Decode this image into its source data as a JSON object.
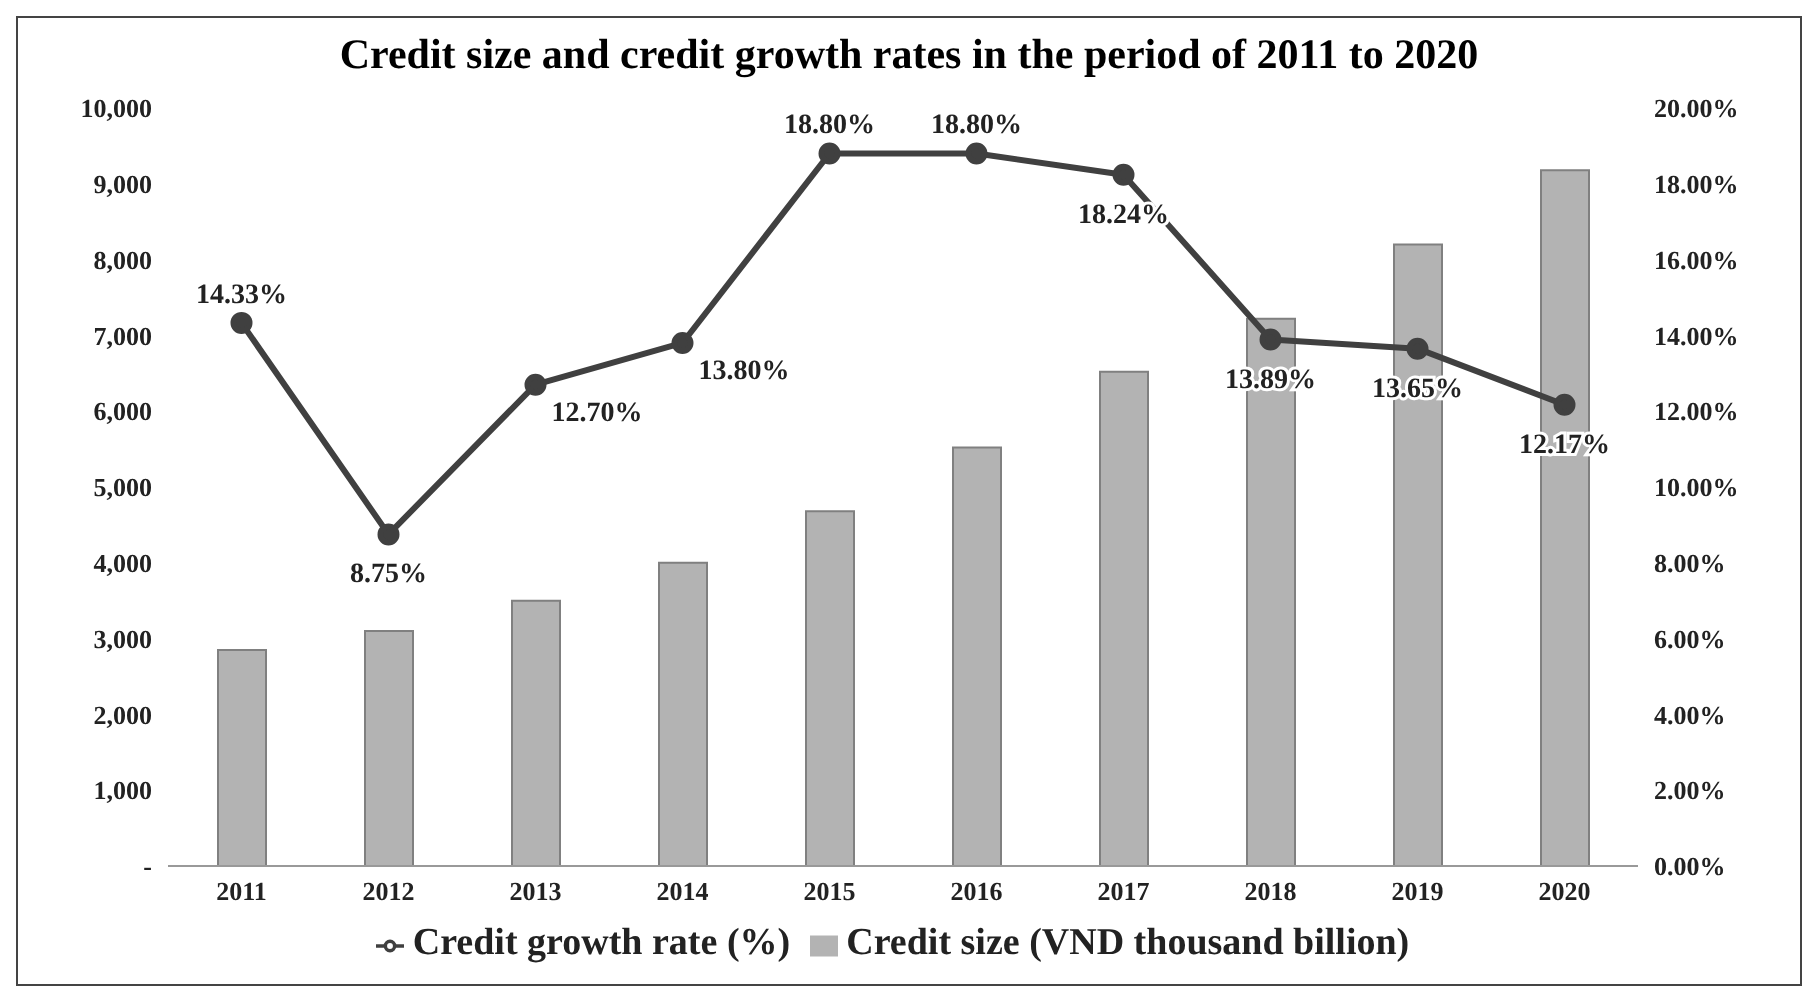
{
  "chart_data": {
    "type": "bar",
    "title": "Credit size and credit growth rates in the period of 2011 to 2020",
    "categories": [
      "2011",
      "2012",
      "2013",
      "2014",
      "2015",
      "2016",
      "2017",
      "2018",
      "2019",
      "2020"
    ],
    "series": [
      {
        "name": "Credit size (VND thousand billion)",
        "color": "#b3b3b3",
        "values": [
          2850,
          3100,
          3500,
          4000,
          4680,
          5520,
          6520,
          7220,
          8200,
          9180
        ]
      },
      {
        "name": "Credit growth rate (%)",
        "type": "line",
        "axis": "y2",
        "color": "#404040",
        "marker": "circle",
        "values": [
          14.33,
          8.75,
          12.7,
          13.8,
          18.8,
          18.8,
          18.24,
          13.89,
          13.65,
          12.17
        ],
        "value_labels": [
          "14.33%",
          "8.75%",
          "12.70%",
          "13.80%",
          "18.80%",
          "18.80%",
          "18.24%",
          "13.89%",
          "13.65%",
          "12.17%"
        ]
      }
    ],
    "ylim": [
      0,
      10000
    ],
    "yticks": [
      {
        "value": 0,
        "label": "-"
      },
      {
        "value": 1000,
        "label": "1,000"
      },
      {
        "value": 2000,
        "label": "2,000"
      },
      {
        "value": 3000,
        "label": "3,000"
      },
      {
        "value": 4000,
        "label": "4,000"
      },
      {
        "value": 5000,
        "label": "5,000"
      },
      {
        "value": 6000,
        "label": "6,000"
      },
      {
        "value": 7000,
        "label": "7,000"
      },
      {
        "value": 8000,
        "label": "8,000"
      },
      {
        "value": 9000,
        "label": "9,000"
      },
      {
        "value": 10000,
        "label": "10,000"
      }
    ],
    "y2lim": [
      0,
      20
    ],
    "y2ticks": [
      {
        "value": 0,
        "label": "0.00%"
      },
      {
        "value": 2,
        "label": "2.00%"
      },
      {
        "value": 4,
        "label": "4.00%"
      },
      {
        "value": 6,
        "label": "6.00%"
      },
      {
        "value": 8,
        "label": "8.00%"
      },
      {
        "value": 10,
        "label": "10.00%"
      },
      {
        "value": 12,
        "label": "12.00%"
      },
      {
        "value": 14,
        "label": "14.00%"
      },
      {
        "value": 16,
        "label": "16.00%"
      },
      {
        "value": 18,
        "label": "18.00%"
      },
      {
        "value": 20,
        "label": "20.00%"
      }
    ],
    "grid": false,
    "legend": "bottom"
  }
}
